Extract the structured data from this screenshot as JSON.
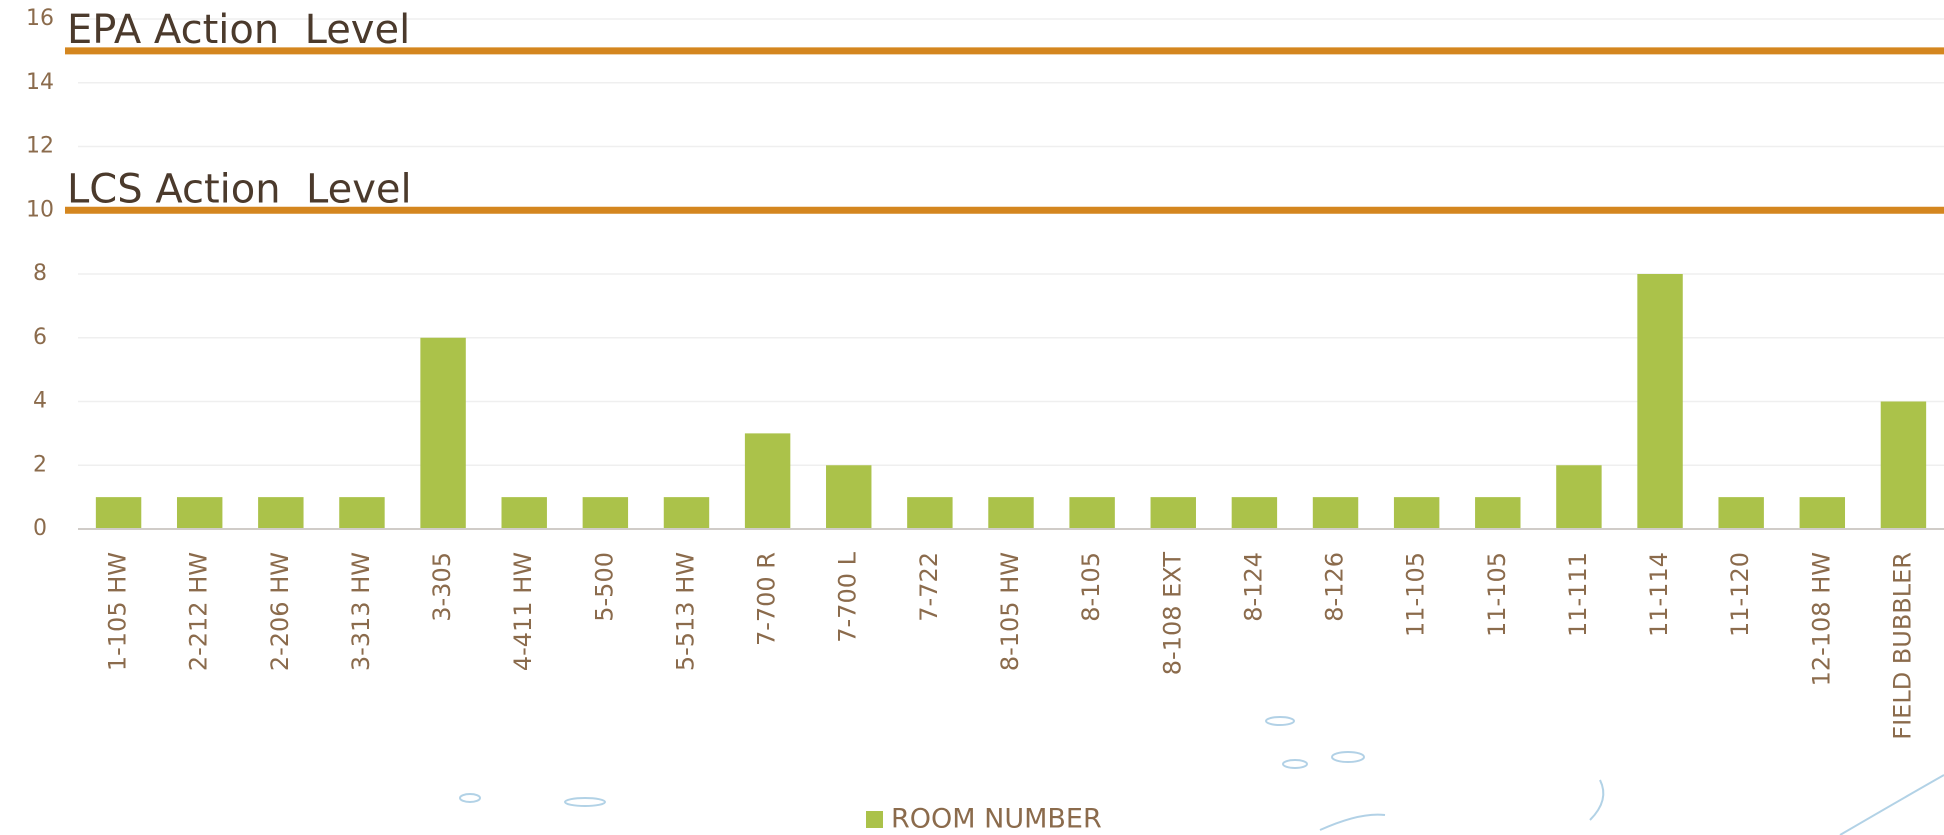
{
  "chart_data": {
    "type": "bar",
    "categories": [
      "1-105 HW",
      "2-212 HW",
      "2-206 HW",
      "3-313 HW",
      "3-305",
      "4-411 HW",
      "5-500",
      "5-513 HW",
      "7-700 R",
      "7-700 L",
      "7-722",
      "8-105 HW",
      "8-105",
      "8-108 EXT",
      "8-124",
      "8-126",
      "11-105",
      "11-105",
      "11-111",
      "11-114",
      "11-120",
      "12-108 HW",
      "FIELD BUBBLER"
    ],
    "series": [
      {
        "name": "ROOM NUMBER",
        "color": "#abc24a",
        "values": [
          1,
          1,
          1,
          1,
          6,
          1,
          1,
          1,
          3,
          2,
          1,
          1,
          1,
          1,
          1,
          1,
          1,
          1,
          2,
          8,
          1,
          1,
          4
        ]
      }
    ],
    "reference_lines": [
      {
        "label": "EPA Action  Level",
        "value": 15,
        "color": "#d4861f"
      },
      {
        "label": "LCS Action  Level",
        "value": 10,
        "color": "#d4861f"
      }
    ],
    "ylim": [
      0,
      16
    ],
    "yticks": [
      0,
      2,
      4,
      6,
      8,
      10,
      12,
      14,
      16
    ],
    "grid": true,
    "legend": "bottom"
  }
}
